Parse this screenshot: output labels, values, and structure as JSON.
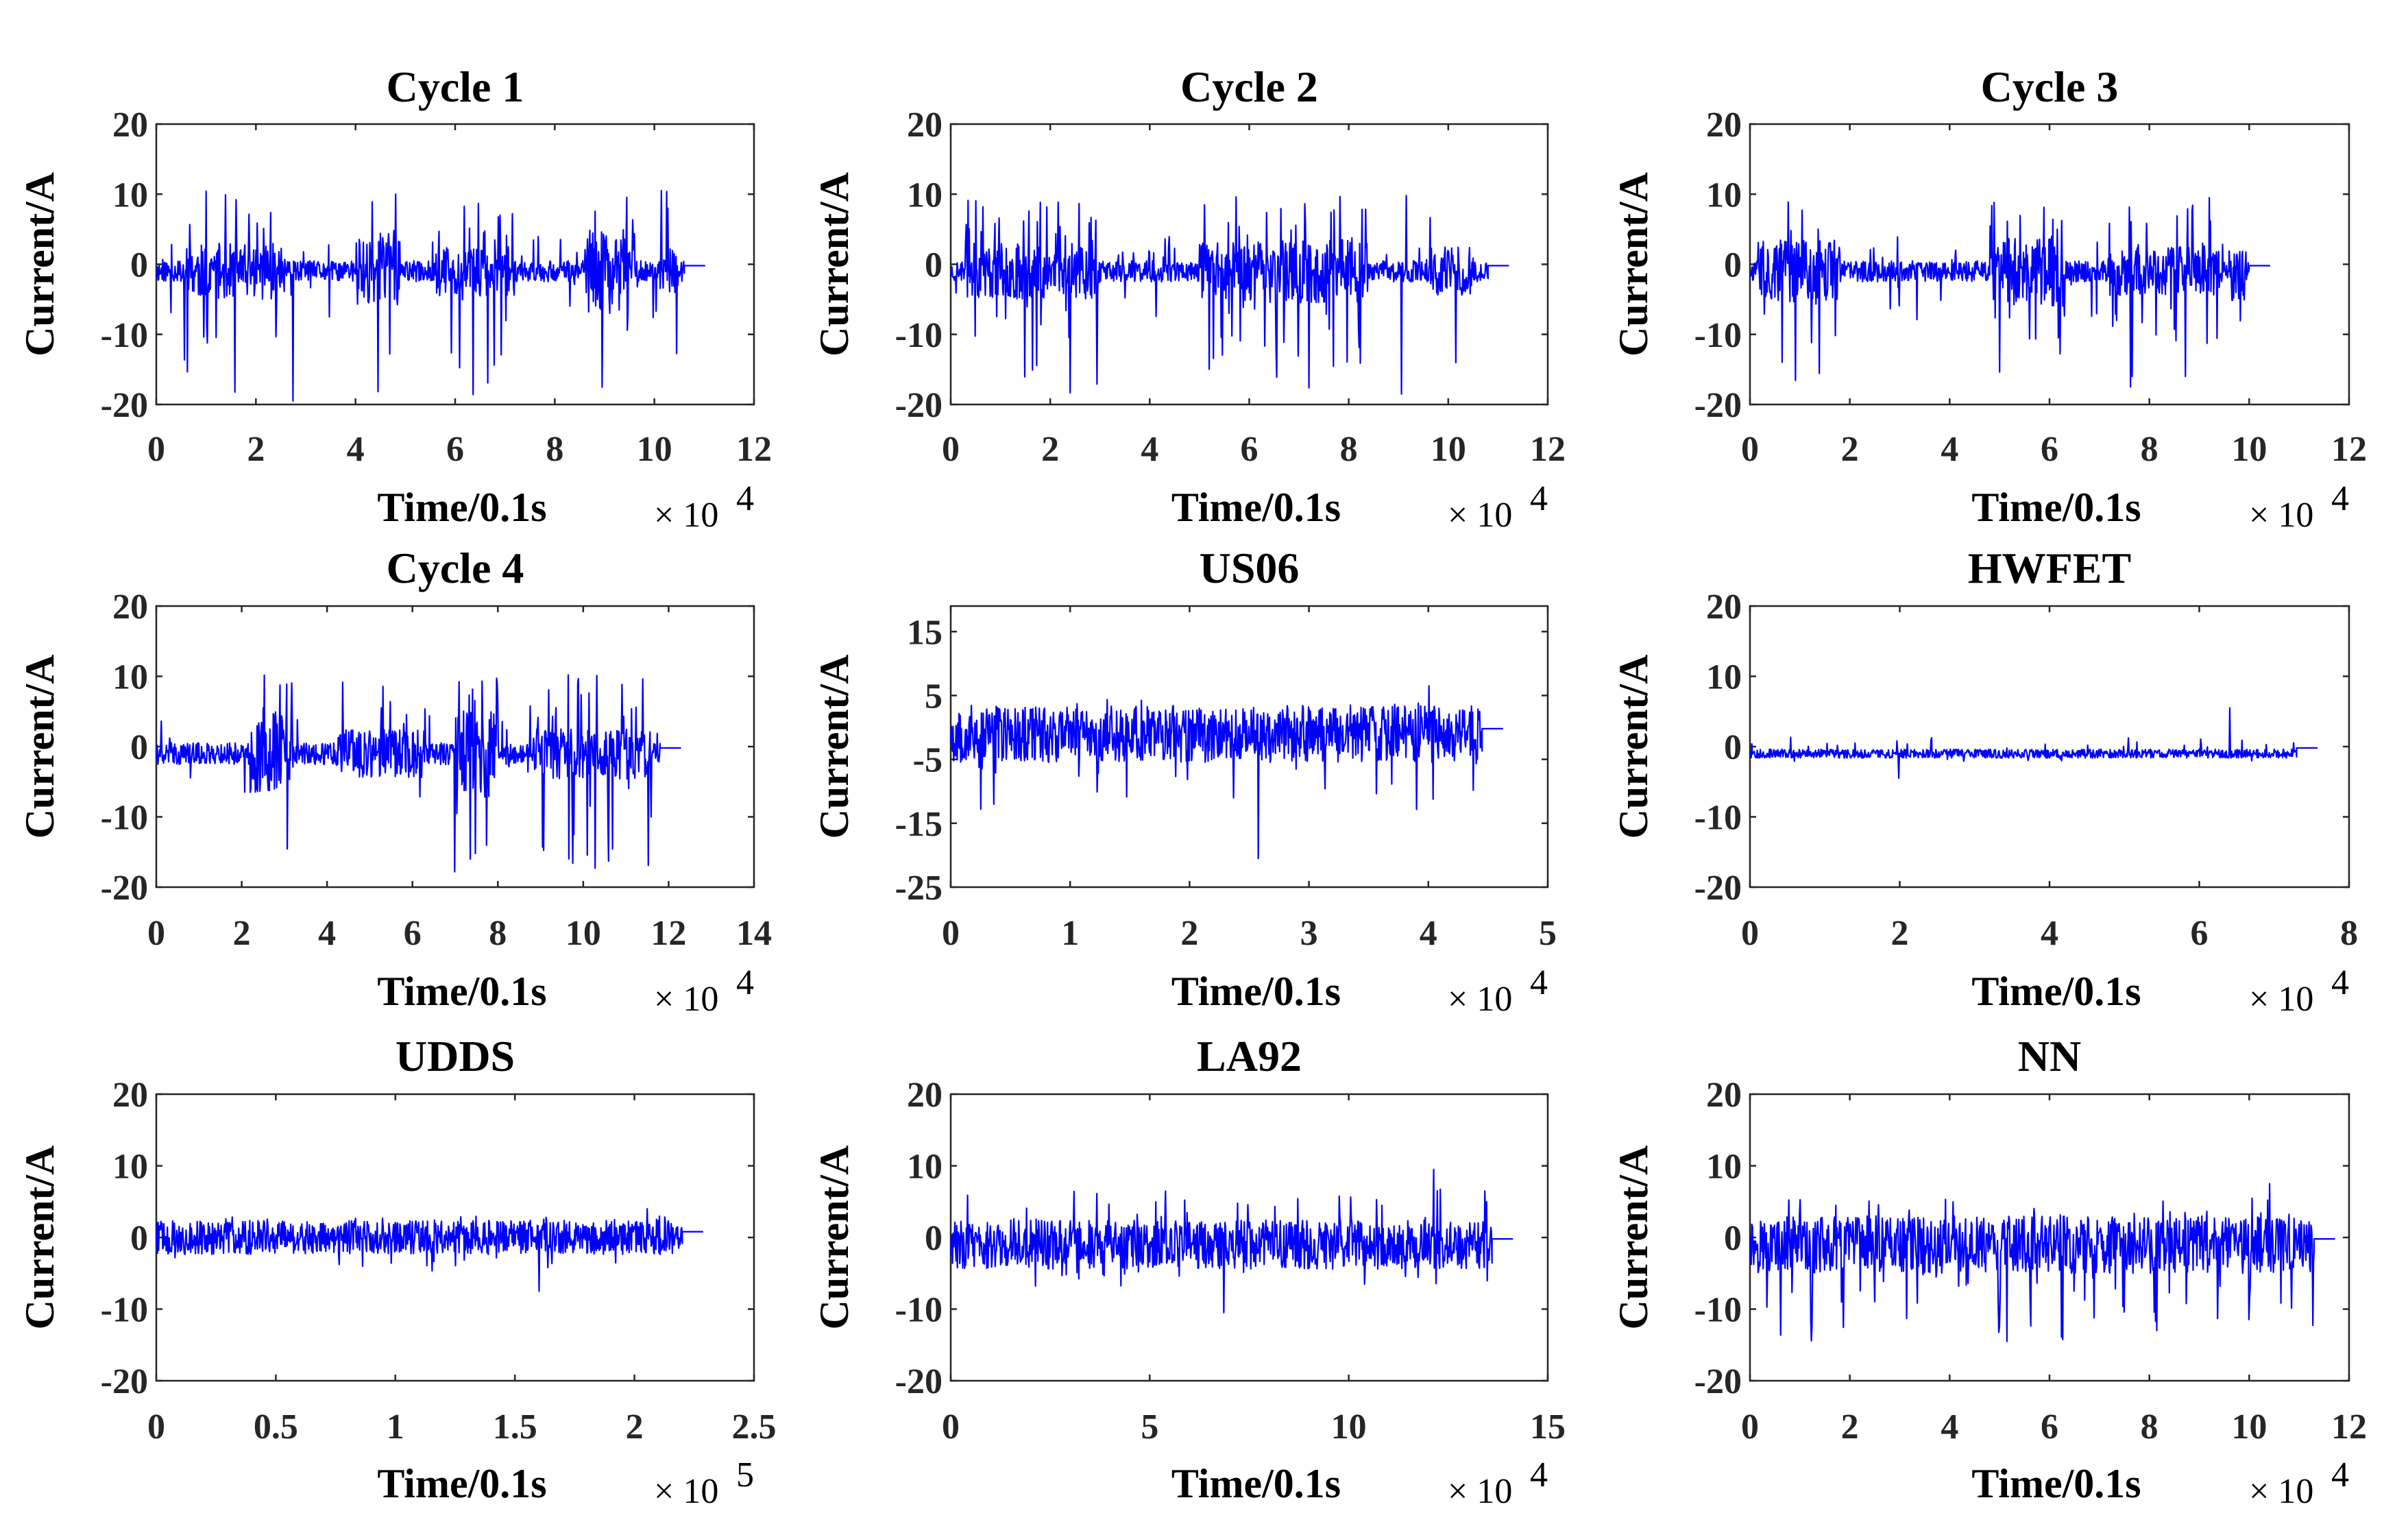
{
  "figure": {
    "signal_color": "#0000ff",
    "axis_color": "#262626"
  },
  "chart_data": [
    {
      "type": "line",
      "title": "Cycle 1",
      "xlabel": "Time/0.1s",
      "ylabel": "Current/A",
      "x_multiplier": "× 10",
      "x_exponent": "4",
      "xlim": [
        0,
        12
      ],
      "ylim": [
        -20,
        20
      ],
      "xticks": [
        "0",
        "2",
        "4",
        "6",
        "8",
        "10",
        "12"
      ],
      "yticks": [
        "20",
        "10",
        "0",
        "-10",
        "-20"
      ],
      "series": [
        {
          "name": "current",
          "x_end": 10.6,
          "baseline": -1,
          "noise_amp": 2.5,
          "peak_max": 10.5,
          "peak_min": -19.5,
          "bursts": [
            [
              0.5,
              2.6,
              1.6
            ],
            [
              4.0,
              4.9,
              2.2
            ],
            [
              5.6,
              7.2,
              1.4
            ],
            [
              8.6,
              9.6,
              2.4
            ],
            [
              10.1,
              10.5,
              1.3
            ]
          ],
          "seed": 11
        }
      ]
    },
    {
      "type": "line",
      "title": "Cycle 2",
      "xlabel": "Time/0.1s",
      "ylabel": "Current/A",
      "x_multiplier": "× 10",
      "x_exponent": "4",
      "xlim": [
        0,
        12
      ],
      "ylim": [
        -20,
        20
      ],
      "xticks": [
        "0",
        "2",
        "4",
        "6",
        "8",
        "10",
        "12"
      ],
      "yticks": [
        "20",
        "10",
        "0",
        "-10",
        "-20"
      ],
      "series": [
        {
          "name": "current",
          "x_end": 10.8,
          "baseline": -1,
          "noise_amp": 2.5,
          "peak_max": 9.8,
          "peak_min": -18.5,
          "bursts": [
            [
              0.3,
              3.0,
              1.6
            ],
            [
              5.0,
              8.4,
              1.8
            ],
            [
              9.6,
              10.5,
              1.4
            ]
          ],
          "seed": 23
        }
      ]
    },
    {
      "type": "line",
      "title": "Cycle 3",
      "xlabel": "Time/0.1s",
      "ylabel": "Current/A",
      "x_multiplier": "× 10",
      "x_exponent": "4",
      "xlim": [
        0,
        12
      ],
      "ylim": [
        -20,
        20
      ],
      "xticks": [
        "0",
        "2",
        "4",
        "6",
        "8",
        "10",
        "12"
      ],
      "yticks": [
        "20",
        "10",
        "0",
        "-10",
        "-20"
      ],
      "series": [
        {
          "name": "current",
          "x_end": 10.0,
          "baseline": -1,
          "noise_amp": 2.5,
          "peak_max": 9.5,
          "peak_min": -17.5,
          "bursts": [
            [
              0.2,
              1.8,
              1.8
            ],
            [
              4.8,
              6.3,
              2.0
            ],
            [
              7.2,
              9.4,
              1.4
            ],
            [
              9.6,
              9.9,
              1.7
            ]
          ],
          "seed": 37
        }
      ]
    },
    {
      "type": "line",
      "title": "Cycle 4",
      "xlabel": "Time/0.1s",
      "ylabel": "Current/A",
      "x_multiplier": "× 10",
      "x_exponent": "4",
      "xlim": [
        0,
        14
      ],
      "ylim": [
        -20,
        20
      ],
      "xticks": [
        "0",
        "2",
        "4",
        "6",
        "8",
        "10",
        "12",
        "14"
      ],
      "yticks": [
        "20",
        "10",
        "0",
        "-10",
        "-20"
      ],
      "series": [
        {
          "name": "current",
          "x_end": 11.8,
          "baseline": -1,
          "noise_amp": 2.6,
          "peak_max": 10.2,
          "peak_min": -17.8,
          "bursts": [
            [
              2.2,
              3.2,
              2.2
            ],
            [
              4.2,
              6.3,
              1.3
            ],
            [
              7.0,
              8.0,
              2.4
            ],
            [
              8.7,
              11.6,
              1.4
            ]
          ],
          "seed": 41
        }
      ]
    },
    {
      "type": "line",
      "title": "US06",
      "xlabel": "Time/0.1s",
      "ylabel": "Current/A",
      "x_multiplier": "× 10",
      "x_exponent": "4",
      "xlim": [
        0,
        5
      ],
      "ylim": [
        -25,
        19
      ],
      "xticks": [
        "0",
        "1",
        "2",
        "3",
        "4",
        "5"
      ],
      "yticks": [
        "15",
        "5",
        "-5",
        "-15",
        "-25"
      ],
      "series": [
        {
          "name": "current",
          "x_end": 4.45,
          "baseline": -1,
          "noise_amp": 5.0,
          "peak_max": 6.5,
          "peak_min": -20.5,
          "dense": true,
          "dense_amp": 0.9,
          "seed": 53
        }
      ]
    },
    {
      "type": "line",
      "title": "HWFET",
      "xlabel": "Time/0.1s",
      "ylabel": "Current/A",
      "x_multiplier": "× 10",
      "x_exponent": "4",
      "xlim": [
        0,
        8
      ],
      "ylim": [
        -20,
        20
      ],
      "xticks": [
        "0",
        "2",
        "4",
        "6",
        "8"
      ],
      "yticks": [
        "20",
        "10",
        "0",
        "-10",
        "-20"
      ],
      "series": [
        {
          "name": "current",
          "x_end": 7.3,
          "baseline": -1,
          "noise_amp": 1.4,
          "peak_max": 5.5,
          "peak_min": -4.5,
          "dense": true,
          "dense_amp": 0.45,
          "seed": 67
        }
      ]
    },
    {
      "type": "line",
      "title": "UDDS",
      "xlabel": "Time/0.1s",
      "ylabel": "Current/A",
      "x_multiplier": "× 10",
      "x_exponent": "5",
      "xlim": [
        0,
        2.5
      ],
      "ylim": [
        -20,
        20
      ],
      "xticks": [
        "0",
        "0.5",
        "1",
        "1.5",
        "2",
        "2.5"
      ],
      "yticks": [
        "20",
        "10",
        "0",
        "-10",
        "-20"
      ],
      "series": [
        {
          "name": "current",
          "x_end": 2.2,
          "baseline": 0,
          "noise_amp": 2.5,
          "peak_max": 4.0,
          "peak_min": -7.5,
          "dense": true,
          "dense_amp": 0.95,
          "seed": 79
        }
      ]
    },
    {
      "type": "line",
      "title": "LA92",
      "xlabel": "Time/0.1s",
      "ylabel": "Current/A",
      "x_multiplier": "× 10",
      "x_exponent": "4",
      "xlim": [
        0,
        15
      ],
      "ylim": [
        -20,
        20
      ],
      "xticks": [
        "0",
        "5",
        "10",
        "15"
      ],
      "yticks": [
        "20",
        "10",
        "0",
        "-10",
        "-20"
      ],
      "series": [
        {
          "name": "current",
          "x_end": 13.6,
          "baseline": -1,
          "noise_amp": 3.6,
          "peak_max": 9.5,
          "peak_min": -10.5,
          "dense": true,
          "dense_amp": 0.95,
          "seed": 83
        }
      ]
    },
    {
      "type": "line",
      "title": "NN",
      "xlabel": "Time/0.1s",
      "ylabel": "Current/A",
      "x_multiplier": "× 10",
      "x_exponent": "4",
      "xlim": [
        0,
        12
      ],
      "ylim": [
        -20,
        20
      ],
      "xticks": [
        "0",
        "2",
        "4",
        "6",
        "8",
        "10",
        "12"
      ],
      "yticks": [
        "20",
        "10",
        "0",
        "-10",
        "-20"
      ],
      "series": [
        {
          "name": "current",
          "x_end": 11.3,
          "baseline": -1,
          "noise_amp": 4.0,
          "peak_max": 7.5,
          "peak_min": -14.5,
          "dense": true,
          "dense_amp": 1.0,
          "periodic_dips": 18,
          "seed": 97
        }
      ]
    }
  ]
}
